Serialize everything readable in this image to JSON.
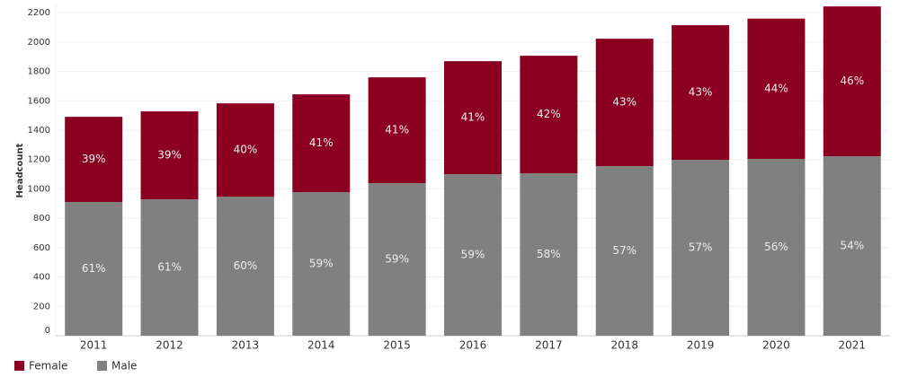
{
  "chart_data": {
    "type": "stacked-bar",
    "y_label": "Headcount",
    "categories": [
      "2011",
      "2012",
      "2013",
      "2014",
      "2015",
      "2016",
      "2017",
      "2018",
      "2019",
      "2020",
      "2021"
    ],
    "series": [
      {
        "name": "Male",
        "color": "#808080",
        "values": [
          911,
          929,
          947,
          978,
          1039,
          1100,
          1106,
          1155,
          1198,
          1204,
          1222
        ],
        "value_labels": [
          "61%",
          "61%",
          "60%",
          "59%",
          "59%",
          "59%",
          "58%",
          "57%",
          "57%",
          "56%",
          "54%"
        ]
      },
      {
        "name": "Female",
        "color": "#8b0021",
        "values": [
          580,
          599,
          636,
          666,
          721,
          770,
          801,
          868,
          917,
          956,
          1021
        ],
        "value_labels": [
          "39%",
          "39%",
          "40%",
          "41%",
          "41%",
          "41%",
          "42%",
          "43%",
          "43%",
          "44%",
          "46%"
        ]
      }
    ],
    "legend_order": [
      "Female",
      "Male"
    ],
    "ylim": [
      0,
      2250
    ],
    "yticks": [
      0,
      200,
      400,
      600,
      800,
      1000,
      1200,
      1400,
      1600,
      1800,
      2000,
      2200
    ],
    "grid": true
  }
}
